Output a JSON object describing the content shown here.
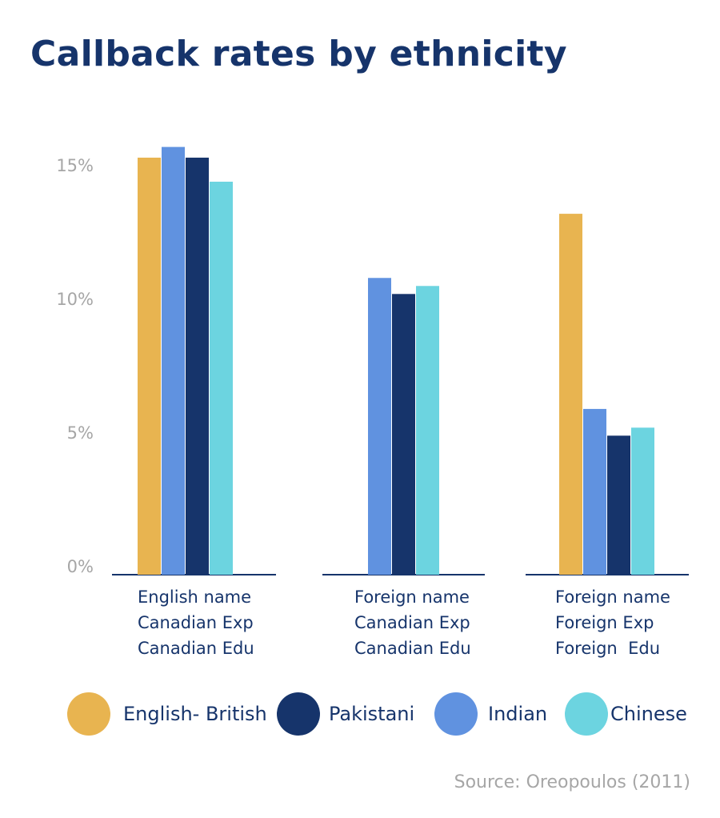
{
  "colors": {
    "title": "#16346b",
    "tick": "#a6a6a6",
    "baseline": "#16346b"
  },
  "chart_data": {
    "type": "bar",
    "title": "Callback rates by ethnicity",
    "xlabel": "",
    "ylabel": "",
    "ylim": [
      0,
      16
    ],
    "y_ticks": [
      {
        "value": 0,
        "label": "0%"
      },
      {
        "value": 5,
        "label": "5%"
      },
      {
        "value": 10,
        "label": "10%"
      },
      {
        "value": 15,
        "label": "15%"
      }
    ],
    "categories": [
      [
        "English name",
        "Canadian Exp",
        "Canadian Edu"
      ],
      [
        "Foreign name",
        "Canadian Exp",
        "Canadian Edu"
      ],
      [
        "Foreign name",
        "Foreign Exp",
        "Foreign  Edu"
      ]
    ],
    "series": [
      {
        "name": "English- British",
        "color": "#e8b450",
        "values": [
          15.6,
          null,
          13.5
        ]
      },
      {
        "name": "Indian",
        "color": "#6092e0",
        "values": [
          16.0,
          11.1,
          6.2
        ]
      },
      {
        "name": "Pakistani",
        "color": "#16346b",
        "values": [
          15.6,
          10.5,
          5.2
        ]
      },
      {
        "name": "Chinese",
        "color": "#6cd4e0",
        "values": [
          14.7,
          10.8,
          5.5
        ]
      }
    ],
    "legend": {
      "placement": "bottom",
      "order": [
        "English- British",
        "Pakistani",
        "Indian",
        "Chinese"
      ]
    },
    "grid": false,
    "source": "Source: Oreopoulos (2011)"
  }
}
